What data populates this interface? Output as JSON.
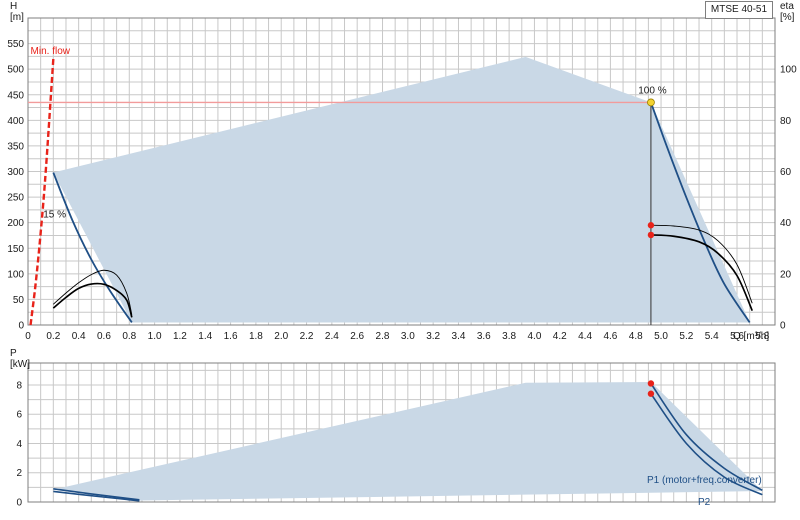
{
  "model": "MTSE 40-51",
  "chart_data": [
    {
      "type": "line",
      "title": "",
      "xlabel": "Q [m³/h]",
      "ylabel": "H\n[m]",
      "y2label": "eta\n[%]",
      "xlim": [
        0,
        5.9
      ],
      "ylim": [
        0,
        600
      ],
      "y2lim": [
        0,
        120
      ],
      "x_ticks": [
        "0",
        "0.2",
        "0.4",
        "0.6",
        "0.8",
        "1.0",
        "1.2",
        "1.4",
        "1.6",
        "1.8",
        "2.0",
        "2.2",
        "2.4",
        "2.6",
        "2.8",
        "3.0",
        "3.2",
        "3.4",
        "3.6",
        "3.8",
        "4.0",
        "4.2",
        "4.4",
        "4.6",
        "4.8",
        "5.0",
        "5.2",
        "5.4",
        "5.6",
        "5.8"
      ],
      "y_ticks": [
        "0",
        "50",
        "100",
        "150",
        "200",
        "250",
        "300",
        "350",
        "400",
        "450",
        "500",
        "550"
      ],
      "y2_ticks": [
        "0",
        "20",
        "40",
        "60",
        "80",
        "100"
      ],
      "grid": true,
      "operating_range": [
        [
          0.2,
          298
        ],
        [
          3.93,
          524
        ],
        [
          4.92,
          435
        ],
        [
          5.7,
          5
        ],
        [
          0.82,
          5
        ],
        [
          0.2,
          298
        ]
      ],
      "series": [
        {
          "name": "",
          "values": [
            [
              0.2,
              298
            ],
            [
              0.35,
              205
            ],
            [
              0.5,
              128
            ],
            [
              0.65,
              66
            ],
            [
              0.82,
              5
            ]
          ]
        },
        {
          "name": "",
          "values": [
            [
              4.92,
              435
            ],
            [
              5.05,
              346
            ],
            [
              5.2,
              249
            ],
            [
              5.35,
              159
            ],
            [
              5.5,
              80
            ],
            [
              5.7,
              5
            ]
          ]
        },
        {
          "name": "",
          "values": [
            [
              0.2,
              8.1
            ],
            [
              0.3,
              12.5
            ],
            [
              0.4,
              16.5
            ],
            [
              0.5,
              19.7
            ],
            [
              0.6,
              21.4
            ],
            [
              0.7,
              19.5
            ],
            [
              0.78,
              12.4
            ],
            [
              0.82,
              4
            ]
          ]
        },
        {
          "name": "",
          "values": [
            [
              0.2,
              6.6
            ],
            [
              0.3,
              10.8
            ],
            [
              0.4,
              14.3
            ],
            [
              0.5,
              16
            ],
            [
              0.6,
              15.9
            ],
            [
              0.7,
              13.5
            ],
            [
              0.78,
              9.7
            ],
            [
              0.82,
              3
            ]
          ]
        },
        {
          "name": "",
          "values": [
            [
              4.92,
              39
            ],
            [
              5.1,
              38.7
            ],
            [
              5.3,
              37.1
            ],
            [
              5.45,
              32.9
            ],
            [
              5.6,
              23.6
            ],
            [
              5.72,
              8.5
            ]
          ]
        },
        {
          "name": "",
          "values": [
            [
              4.92,
              35.2
            ],
            [
              5.1,
              34.7
            ],
            [
              5.3,
              32.5
            ],
            [
              5.45,
              28
            ],
            [
              5.6,
              19.3
            ],
            [
              5.72,
              5.6
            ]
          ]
        }
      ],
      "min_flow_curve": [
        [
          0.02,
          0
        ],
        [
          0.06,
          80
        ],
        [
          0.1,
          180
        ],
        [
          0.14,
          300
        ],
        [
          0.2,
          520
        ]
      ],
      "annotations": [
        {
          "text": "Min. flow",
          "x": 0.02,
          "y": 530
        },
        {
          "text": "15 %",
          "x": 0.12,
          "y": 210
        },
        {
          "text": "100 %",
          "x": 4.82,
          "y": 452
        }
      ],
      "duty_point": {
        "x": 4.92,
        "y": 435
      },
      "duty_line_y": 435,
      "markers": [
        [
          4.92,
          39
        ],
        [
          4.92,
          35.2
        ]
      ]
    },
    {
      "type": "line",
      "title": "",
      "xlabel": "",
      "ylabel": "P\n[kW]",
      "xlim": [
        0,
        5.9
      ],
      "ylim": [
        0,
        9.5
      ],
      "y_ticks": [
        "0",
        "2",
        "4",
        "6",
        "8"
      ],
      "grid": true,
      "operating_range": [
        [
          0.2,
          0.85
        ],
        [
          3.93,
          8.15
        ],
        [
          4.92,
          8.2
        ],
        [
          5.8,
          0.75
        ],
        [
          0.88,
          0.1
        ],
        [
          0.2,
          0.85
        ]
      ],
      "series": [
        {
          "name": "P1 (motor+freq.converter)",
          "values": [
            [
              0.2,
              0.9
            ],
            [
              0.5,
              0.55
            ],
            [
              0.88,
              0.15
            ],
            [
              4.92,
              8.1
            ],
            [
              5.2,
              4.6
            ],
            [
              5.5,
              2.3
            ],
            [
              5.8,
              0.8
            ]
          ]
        },
        {
          "name": "P2",
          "values": [
            [
              0.2,
              0.72
            ],
            [
              0.5,
              0.43
            ],
            [
              0.88,
              0.08
            ],
            [
              4.92,
              7.4
            ],
            [
              5.2,
              4.0
            ],
            [
              5.5,
              1.7
            ],
            [
              5.8,
              0.5
            ]
          ]
        }
      ],
      "markers": [
        [
          4.92,
          8.1
        ],
        [
          4.92,
          7.4
        ]
      ]
    }
  ],
  "colors": {
    "grid": "#c8c8c8",
    "frame": "#7f7f7f",
    "range_fill": "#c9d8e6",
    "pump_curve": "#1f4f86",
    "eta_curve": "#000000",
    "min_flow": "#e8231a",
    "duty_line": "#f29b9b",
    "marker": "#e8231a",
    "duty_point": "#f2d230"
  }
}
